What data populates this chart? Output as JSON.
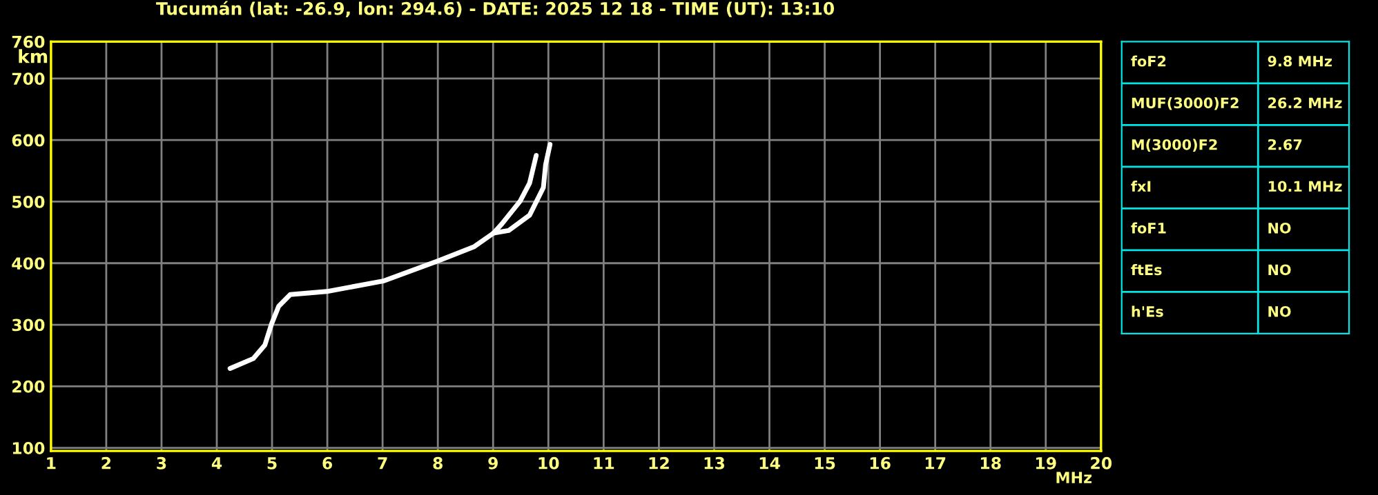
{
  "chart_data": [
    {
      "type": "line",
      "title": "Tucumán (lat: -26.9, lon: 294.6) - DATE: 2025 12 18 - TIME (UT): 13:10",
      "xlabel": "MHz",
      "ylabel": "km",
      "xlim": [
        1,
        20
      ],
      "xticks": [
        1,
        2,
        3,
        4,
        5,
        6,
        7,
        8,
        9,
        10,
        11,
        12,
        13,
        14,
        15,
        16,
        17,
        18,
        19,
        20
      ],
      "ylim": [
        95,
        760
      ],
      "yticks": [
        100,
        200,
        300,
        400,
        500,
        600,
        700,
        760
      ],
      "grid": true,
      "legend": false,
      "marker": "none",
      "line_style": "solid",
      "series": [
        {
          "color": "#ffffff",
          "x": [
            4.24,
            4.66,
            4.87,
            4.99,
            5.12,
            5.33,
            5.99,
            7.01,
            8.01,
            8.66,
            9.01,
            9.16,
            9.49,
            9.66,
            9.78
          ],
          "values": [
            229,
            245,
            267,
            301,
            330,
            349,
            354,
            371,
            404,
            427,
            449,
            464,
            501,
            530,
            575
          ]
        },
        {
          "color": "#ffffff",
          "x": [
            9.01,
            9.28,
            9.66,
            9.91,
            9.95,
            10.03
          ],
          "values": [
            449,
            453,
            478,
            523,
            560,
            593
          ]
        }
      ]
    },
    {
      "type": "other",
      "categories": [
        "foF2",
        "MUF(3000)F2",
        "M(3000)F2",
        "fxI",
        "foF1",
        "ftEs",
        "h'Es"
      ],
      "value_labels": [
        "9.8 MHz",
        "26.2 MHz",
        "2.67",
        "10.1 MHz",
        "NO",
        "NO",
        "NO"
      ],
      "color": "#00e5e5"
    }
  ]
}
